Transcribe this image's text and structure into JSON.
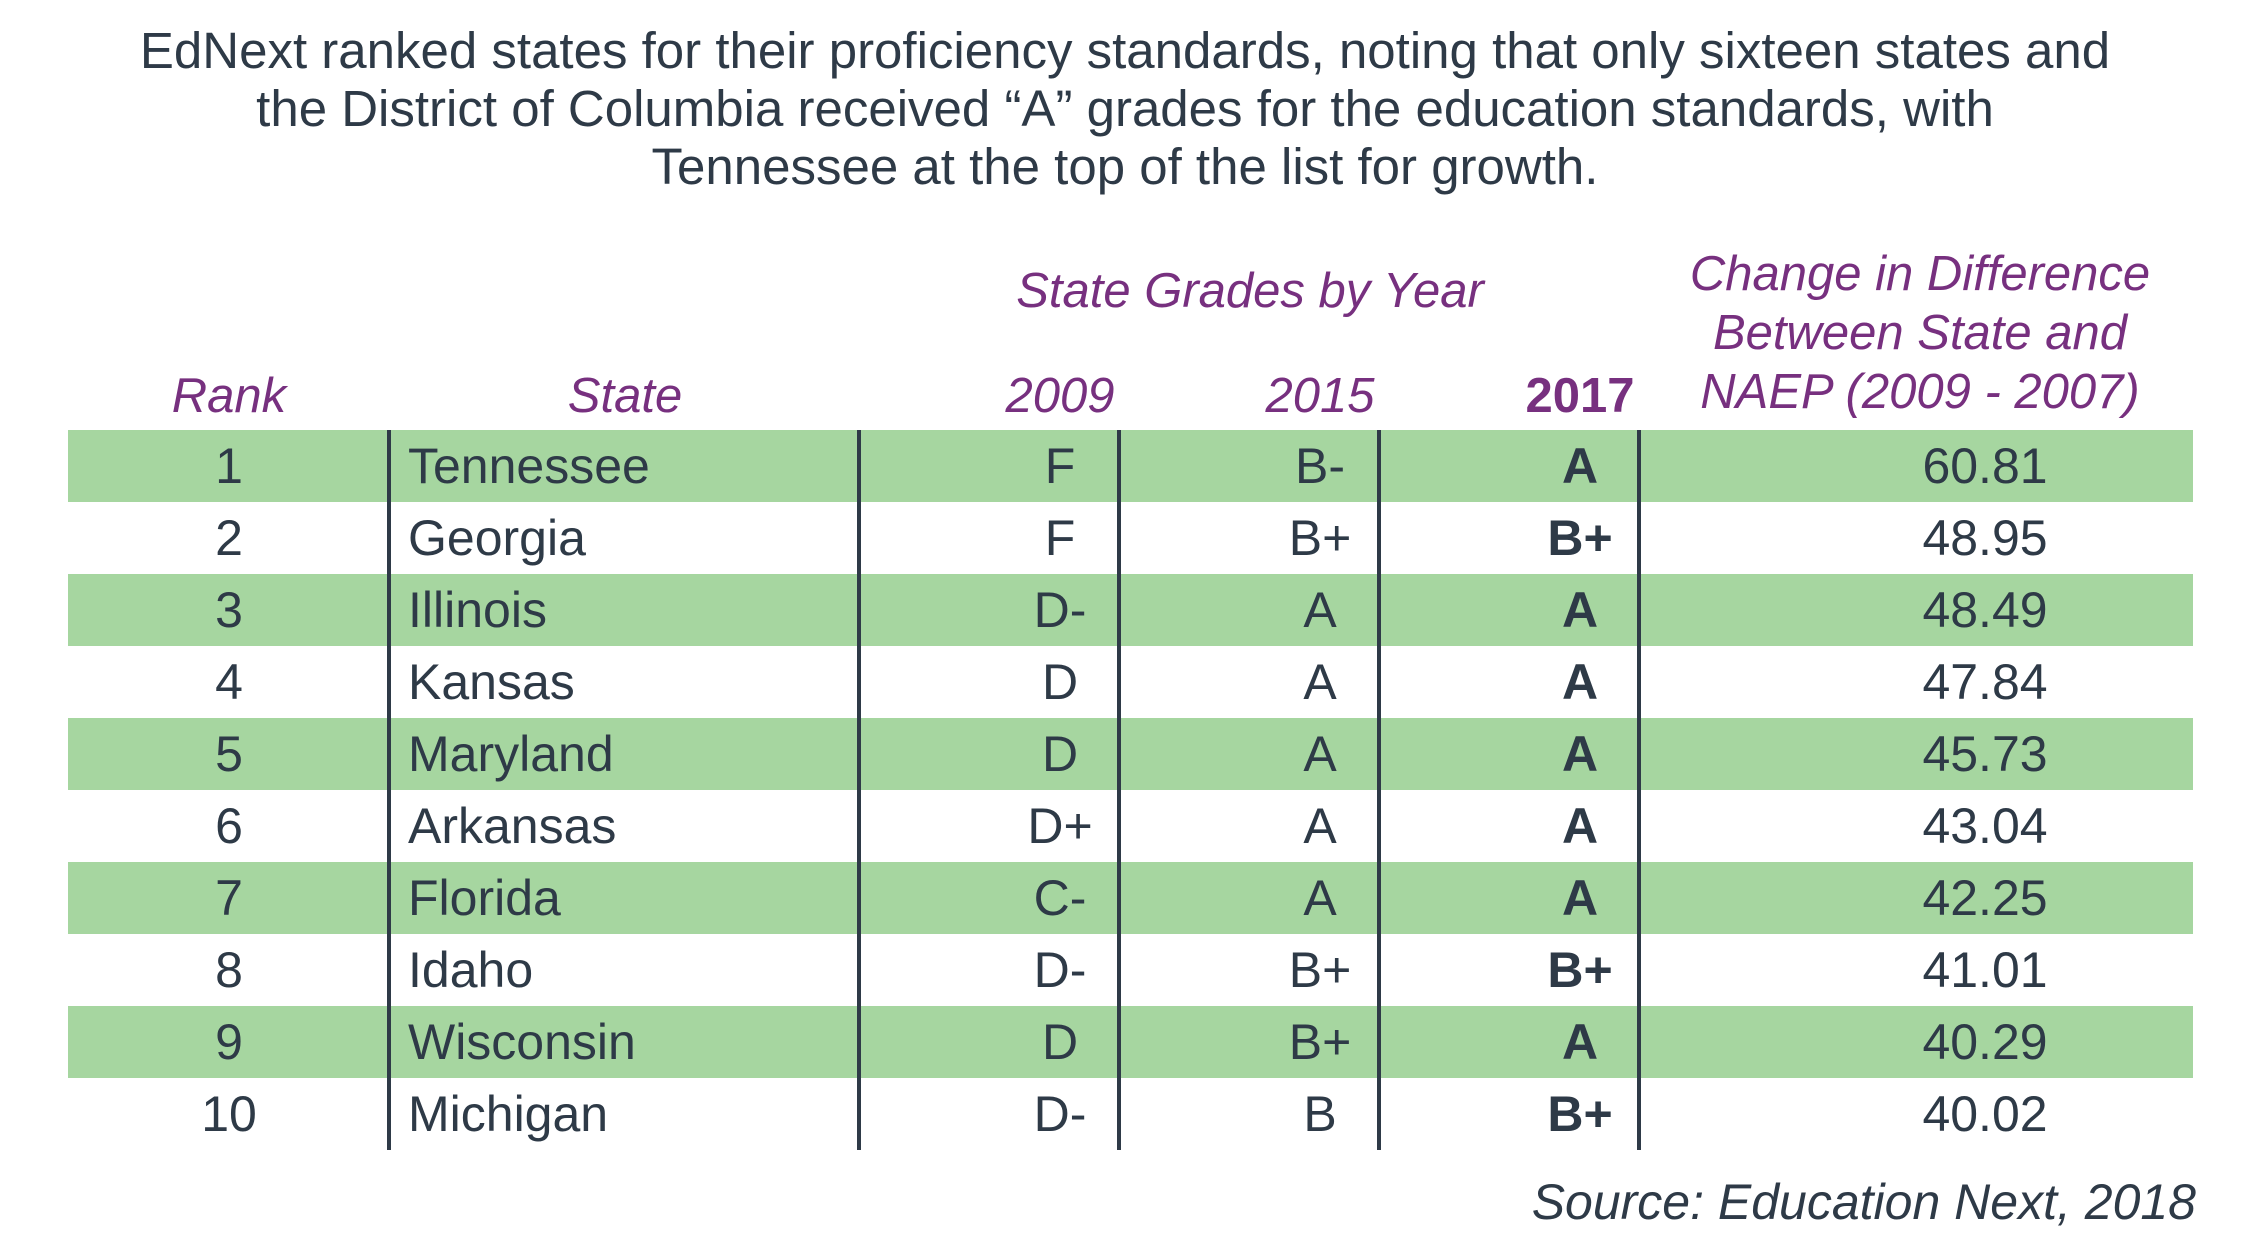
{
  "intro_text": "EdNext ranked states for their proficiency standards, noting that only sixteen states and the District of Columbia received “A” grades for the education standards, with Tennessee at the top of the list for growth.",
  "headers": {
    "rank": "Rank",
    "state": "State",
    "group": "State Grades by Year",
    "y2009": "2009",
    "y2015": "2015",
    "y2017": "2017",
    "change_line1": "Change in Difference",
    "change_line2": "Between State and",
    "change_line3": "NAEP (2009 - 2007)"
  },
  "rows": [
    {
      "rank": "1",
      "state": "Tennessee",
      "g2009": "F",
      "g2015": "B-",
      "g2017": "A",
      "change": "60.81"
    },
    {
      "rank": "2",
      "state": "Georgia",
      "g2009": "F",
      "g2015": "B+",
      "g2017": "B+",
      "change": "48.95"
    },
    {
      "rank": "3",
      "state": "Illinois",
      "g2009": "D-",
      "g2015": "A",
      "g2017": "A",
      "change": "48.49"
    },
    {
      "rank": "4",
      "state": "Kansas",
      "g2009": "D",
      "g2015": "A",
      "g2017": "A",
      "change": "47.84"
    },
    {
      "rank": "5",
      "state": "Maryland",
      "g2009": "D",
      "g2015": "A",
      "g2017": "A",
      "change": "45.73"
    },
    {
      "rank": "6",
      "state": "Arkansas",
      "g2009": "D+",
      "g2015": "A",
      "g2017": "A",
      "change": "43.04"
    },
    {
      "rank": "7",
      "state": "Florida",
      "g2009": "C-",
      "g2015": "A",
      "g2017": "A",
      "change": "42.25"
    },
    {
      "rank": "8",
      "state": "Idaho",
      "g2009": "D-",
      "g2015": "B+",
      "g2017": "B+",
      "change": "41.01"
    },
    {
      "rank": "9",
      "state": "Wisconsin",
      "g2009": "D",
      "g2015": "B+",
      "g2017": "A",
      "change": "40.29"
    },
    {
      "rank": "10",
      "state": "Michigan",
      "g2009": "D-",
      "g2015": "B",
      "g2017": "B+",
      "change": "40.02"
    }
  ],
  "source": "Source: Education Next, 2018",
  "colors": {
    "header_purple": "#77307f",
    "row_shade_green": "#a6d6a0",
    "text_dark": "#2e3a47"
  }
}
